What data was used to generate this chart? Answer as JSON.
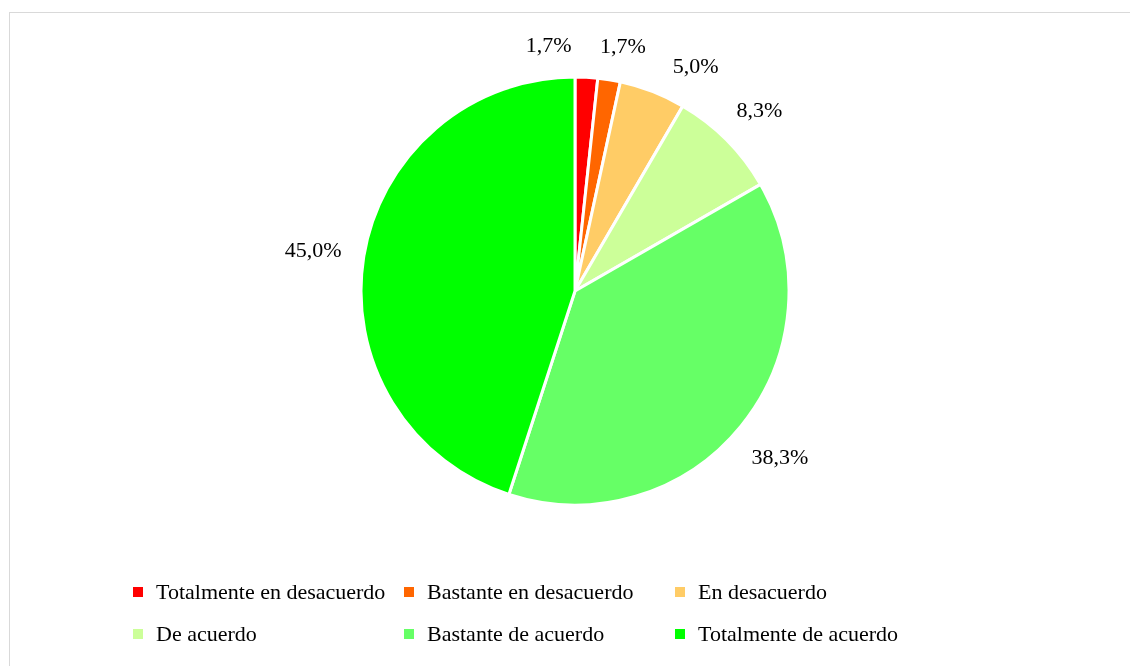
{
  "chart_data": {
    "type": "pie",
    "categories": [
      "Totalmente en desacuerdo",
      "Bastante en desacuerdo",
      "En desacuerdo",
      "De acuerdo",
      "Bastante de acuerdo",
      "Totalmente de acuerdo"
    ],
    "values": [
      1.7,
      1.7,
      5.0,
      8.3,
      38.3,
      45.0
    ],
    "colors": [
      "#ff0000",
      "#ff6600",
      "#ffcc66",
      "#ccff99",
      "#66ff66",
      "#00ff00"
    ],
    "value_labels": [
      "1,7%",
      "1,7%",
      "5,0%",
      "8,3%",
      "38,3%",
      "45,0%"
    ],
    "legend": "bottom"
  }
}
